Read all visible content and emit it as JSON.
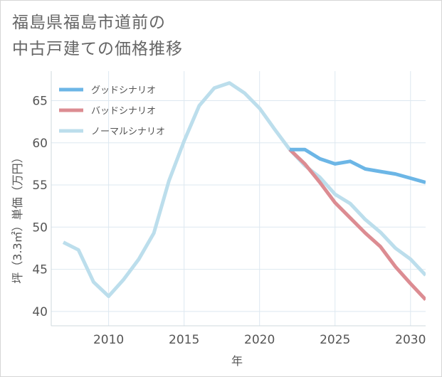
{
  "title": {
    "line1": "福島県福島市道前の",
    "line2": "中古戸建ての価格推移"
  },
  "chart_data": {
    "type": "line",
    "xlabel": "年",
    "ylabel": "坪（3.3㎡）単価（万円）",
    "xlim": [
      2006.2,
      2031
    ],
    "ylim": [
      38.3,
      68.5
    ],
    "xticks": [
      2010,
      2015,
      2020,
      2025,
      2030
    ],
    "yticks": [
      40,
      45,
      50,
      55,
      60,
      65
    ],
    "grid": true,
    "legend_position": "top-left",
    "series": [
      {
        "name": "グッドシナリオ",
        "color": "#6cb6e6",
        "x": [
          2022,
          2023,
          2024,
          2025,
          2026,
          2027,
          2028,
          2029,
          2030,
          2031
        ],
        "y": [
          59.2,
          59.2,
          58.1,
          57.5,
          57.8,
          56.9,
          56.6,
          56.3,
          55.8,
          55.3
        ]
      },
      {
        "name": "バッドシナリオ",
        "color": "#dc8c92",
        "x": [
          2022,
          2023,
          2024,
          2025,
          2026,
          2027,
          2028,
          2029,
          2030,
          2031
        ],
        "y": [
          59.2,
          57.5,
          55.3,
          52.9,
          51.1,
          49.3,
          47.7,
          45.3,
          43.3,
          41.4
        ]
      },
      {
        "name": "ノーマルシナリオ",
        "color": "#bcdeec",
        "x": [
          2007,
          2008,
          2009,
          2010,
          2011,
          2012,
          2013,
          2014,
          2015,
          2016,
          2017,
          2018,
          2019,
          2020,
          2021,
          2022,
          2023,
          2024,
          2025,
          2026,
          2027,
          2028,
          2029,
          2030,
          2031
        ],
        "y": [
          48.2,
          47.3,
          43.5,
          41.8,
          43.8,
          46.2,
          49.3,
          55.5,
          60.2,
          64.4,
          66.5,
          67.1,
          65.9,
          64.1,
          61.6,
          59.2,
          57.3,
          55.9,
          53.9,
          52.8,
          50.9,
          49.4,
          47.5,
          46.2,
          44.3
        ]
      }
    ]
  }
}
